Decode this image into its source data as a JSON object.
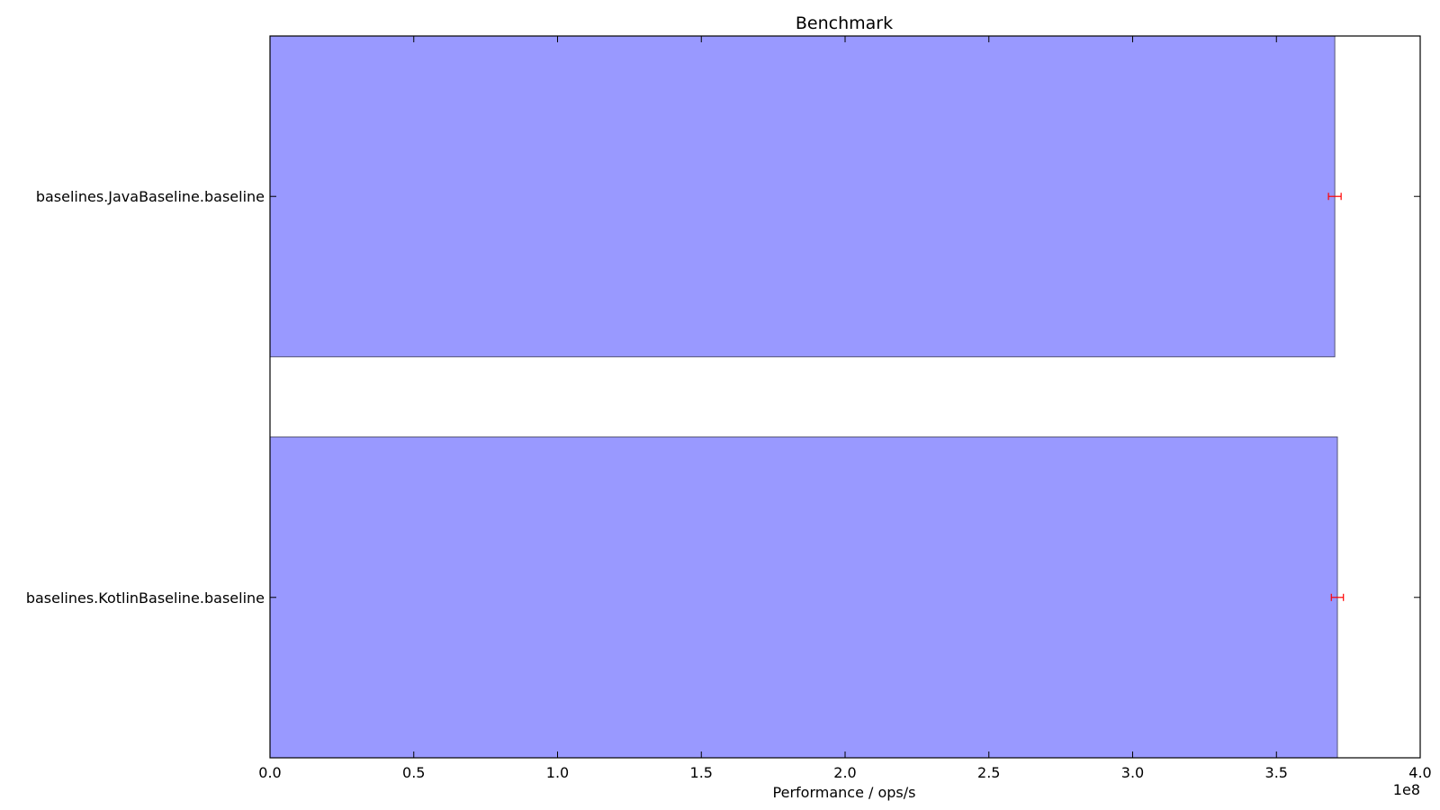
{
  "chart_data": {
    "type": "bar",
    "orientation": "horizontal",
    "title": "Benchmark",
    "xlabel": "Performance / ops/s",
    "ylabel": "",
    "x_scale_note": "1e8",
    "xlim": [
      0,
      400000000
    ],
    "xticks": [
      0,
      50000000,
      100000000,
      150000000,
      200000000,
      250000000,
      300000000,
      350000000,
      400000000
    ],
    "xtick_labels": [
      "0.0",
      "0.5",
      "1.0",
      "1.5",
      "2.0",
      "2.5",
      "3.0",
      "3.5",
      "4.0"
    ],
    "categories": [
      "baselines.JavaBaseline.baseline",
      "baselines.KotlinBaseline.baseline"
    ],
    "values": [
      370300000,
      371200000
    ],
    "errors": [
      2200000,
      2100000
    ],
    "bar_color": "#9999ff",
    "bar_edge_color": "#555577",
    "error_color": "#ff0000",
    "grid": false,
    "legend": "none"
  }
}
